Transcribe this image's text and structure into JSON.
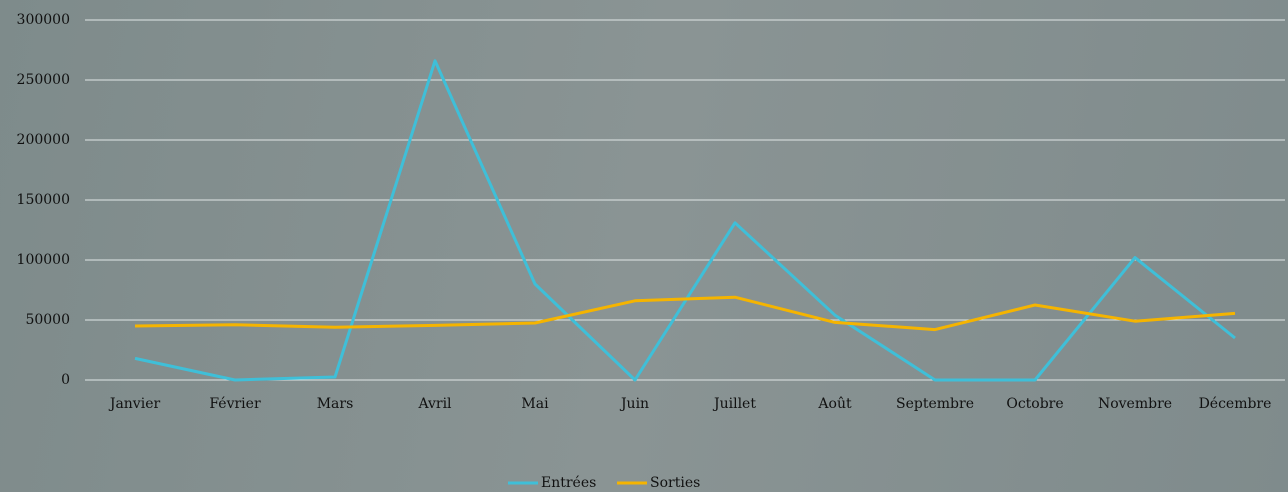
{
  "chart_data": {
    "type": "line",
    "categories": [
      "Janvier",
      "Février",
      "Mars",
      "Avril",
      "Mai",
      "Juin",
      "Juillet",
      "Août",
      "Septembre",
      "Octobre",
      "Novembre",
      "Décembre"
    ],
    "series": [
      {
        "name": "Entrées",
        "color": "#3fbfd8",
        "values": [
          18000,
          0,
          2500,
          266000,
          80000,
          0,
          131000,
          54000,
          0,
          0,
          102000,
          35000
        ]
      },
      {
        "name": "Sorties",
        "color": "#f5b400",
        "values": [
          45000,
          46000,
          44000,
          45500,
          47500,
          66000,
          69000,
          48000,
          42000,
          62500,
          49000,
          55500
        ]
      }
    ],
    "ylim": [
      0,
      300000
    ],
    "yticks": [
      0,
      50000,
      100000,
      150000,
      200000,
      250000,
      300000
    ],
    "grid": true,
    "legend": "bottom"
  }
}
